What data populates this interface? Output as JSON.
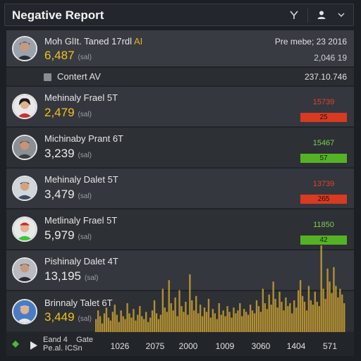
{
  "header": {
    "title": "Negative Report",
    "actions": [
      {
        "name": "filter",
        "icon": "filter-icon",
        "glyph": "Y"
      },
      {
        "name": "user",
        "icon": "user-icon"
      },
      {
        "name": "dropdown",
        "icon": "chevron-down-icon",
        "glyph": "▾"
      }
    ]
  },
  "top_row": {
    "name": "Moh GlIt. Taned 17rdl",
    "name_highlight": "AI",
    "value": "6,487",
    "unit": "(sal)",
    "right_top": "Pre mebe; 23 2016",
    "right_sub": "2,046 19"
  },
  "section": {
    "label": "Contert AV",
    "right": "237.10.746"
  },
  "rows": [
    {
      "name": "Mehinaly Frael 5T",
      "value": "2,479",
      "unit": "(sal)",
      "value_color": "gold",
      "delta_label": "15739",
      "delta": "25",
      "delta_color": "red"
    },
    {
      "name": "Michinaby Prant 6T",
      "value": "3,239",
      "unit": "(sal)",
      "value_color": "white",
      "delta_label": "15467",
      "delta": "57",
      "delta_color": "green"
    },
    {
      "name": "Mehinaly Dalet 5T",
      "value": "3,479",
      "unit": "(sal)",
      "value_color": "white",
      "delta_label": "13739",
      "delta": "265",
      "delta_color": "red"
    },
    {
      "name": "Metlinaly Frael 5T",
      "value": "5,979",
      "unit": "(sal)",
      "value_color": "white",
      "delta_label": "11850",
      "delta": "42",
      "delta_color": "green"
    },
    {
      "name": "Pishinaly Dalet 4T",
      "value": "13,195",
      "unit": "(sal)",
      "value_color": "white"
    },
    {
      "name": "Brinnaly Talet 6T",
      "value": "3,449",
      "unit": "(sal)",
      "value_color": "gold"
    }
  ],
  "colors": {
    "accent_gold": "#f2c21b",
    "negative": "#d83a22",
    "positive": "#55b224",
    "histogram": "#c8a032"
  },
  "histogram": {
    "values": [
      18,
      30,
      22,
      12,
      26,
      34,
      20,
      16,
      28,
      38,
      24,
      14,
      30,
      22,
      18,
      40,
      26,
      20,
      32,
      16,
      24,
      36,
      22,
      18,
      28,
      14,
      20,
      30,
      44,
      26,
      18,
      24,
      60,
      34,
      28,
      72,
      40,
      30,
      48,
      22,
      58,
      36,
      28,
      42,
      24,
      80,
      44,
      30,
      50,
      26,
      38,
      22,
      34,
      28,
      46,
      20,
      32,
      26,
      18,
      40,
      24,
      30,
      22,
      36,
      28,
      20,
      34,
      26,
      30,
      40,
      22,
      32,
      28,
      24,
      38,
      30,
      26,
      44,
      36,
      28,
      60,
      40,
      32,
      52,
      38,
      70,
      46,
      34,
      56,
      42,
      30,
      48,
      36,
      40,
      26,
      44,
      34,
      58,
      72,
      50,
      42,
      30,
      64,
      44,
      38,
      56,
      42,
      36,
      120,
      60,
      46,
      88,
      70,
      54,
      90,
      64,
      48,
      60,
      52,
      40
    ]
  },
  "footer": {
    "label1": "Eand 4",
    "label2": "Pe.al. ICSn",
    "label3": "Gate",
    "ticks": [
      "1026",
      "2075",
      "2000",
      "1009",
      "3060",
      "1404",
      "571"
    ]
  }
}
